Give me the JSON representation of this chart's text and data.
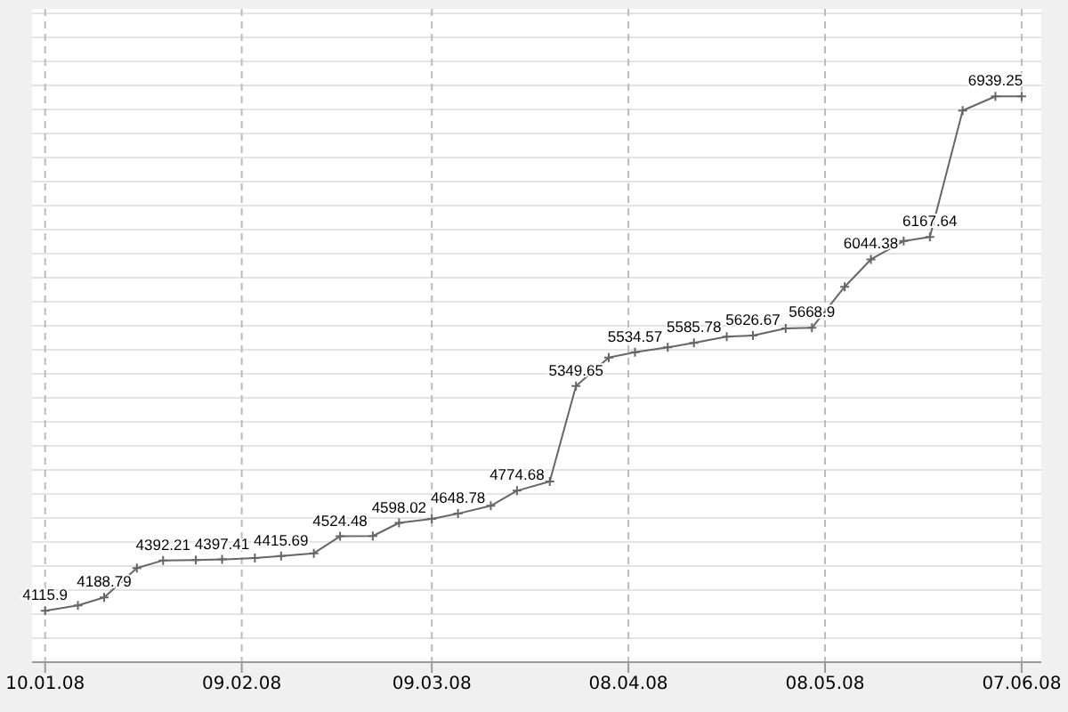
{
  "chart_data": {
    "type": "line",
    "color": "#666666",
    "marker": "cross",
    "line_style": "solid",
    "grid": true,
    "x": [
      "2008-01-10",
      "2008-01-15",
      "2008-01-19",
      "2008-01-24",
      "2008-01-28",
      "2008-02-02",
      "2008-02-06",
      "2008-02-11",
      "2008-02-15",
      "2008-02-20",
      "2008-02-24",
      "2008-02-29",
      "2008-03-04",
      "2008-03-09",
      "2008-03-13",
      "2008-03-18",
      "2008-03-22",
      "2008-03-27",
      "2008-03-31",
      "2008-04-05",
      "2008-04-09",
      "2008-04-14",
      "2008-04-18",
      "2008-04-23",
      "2008-04-27",
      "2008-05-02",
      "2008-05-06",
      "2008-05-11",
      "2008-05-15",
      "2008-05-20",
      "2008-05-24",
      "2008-05-29",
      "2008-06-03",
      "2008-06-07"
    ],
    "values": [
      4115.9,
      4145,
      4188.79,
      4350,
      4392.21,
      4394,
      4397.41,
      4405,
      4415.69,
      4431,
      4524.48,
      4526,
      4598.02,
      4620,
      4648.78,
      4692,
      4774.68,
      4825,
      5349.65,
      5505,
      5534.57,
      5562,
      5585.78,
      5620,
      5626.67,
      5665,
      5668.9,
      5894,
      6044.38,
      6145,
      6167.64,
      6861,
      6939.25,
      6939
    ],
    "value_labels": [
      "4115.9",
      null,
      "4188.79",
      null,
      "4392.21",
      null,
      "4397.41",
      null,
      "4415.69",
      null,
      "4524.48",
      null,
      "4598.02",
      null,
      "4648.78",
      null,
      "4774.68",
      null,
      "5349.65",
      null,
      "5534.57",
      null,
      "5585.78",
      null,
      "5626.67",
      null,
      "5668.9",
      null,
      "6044.38",
      null,
      "6167.64",
      null,
      "6939.25",
      null
    ],
    "xlim": [
      "2008-01-08",
      "2008-06-10"
    ],
    "xticks": [
      {
        "value": "2008-01-10",
        "label": "10.01.08"
      },
      {
        "value": "2008-02-09",
        "label": "09.02.08"
      },
      {
        "value": "2008-03-09",
        "label": "09.03.08"
      },
      {
        "value": "2008-04-08",
        "label": "08.04.08"
      },
      {
        "value": "2008-05-08",
        "label": "08.05.08"
      },
      {
        "value": "2008-06-07",
        "label": "07.06.08"
      }
    ]
  }
}
